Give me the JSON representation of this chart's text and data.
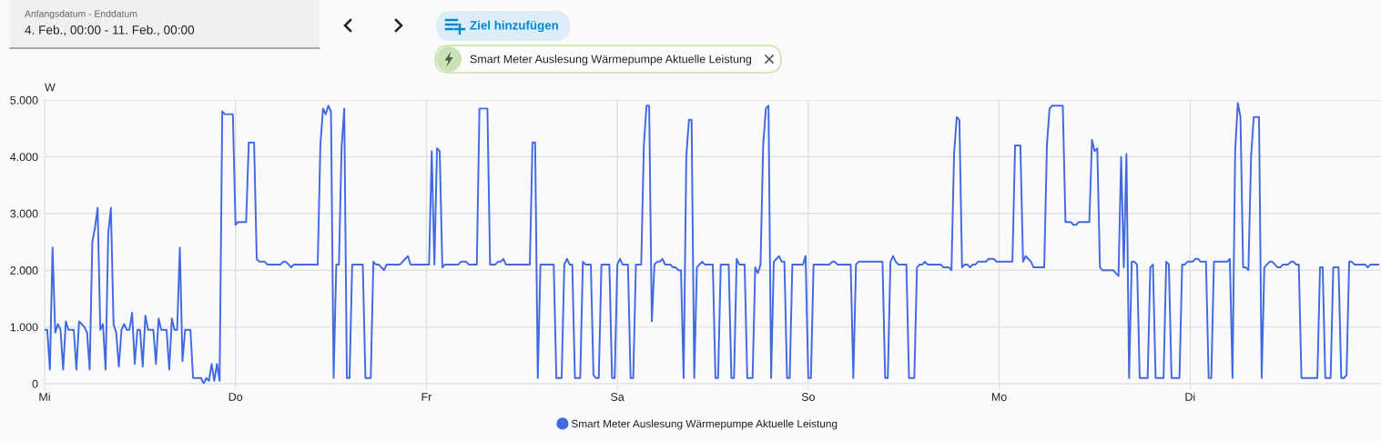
{
  "chart_data": {
    "type": "line",
    "annotations": [
      "Anfangsdatum - Enddatum",
      "4. Feb., 00:00 - 11. Feb., 00:00",
      "Ziel hinzufügen",
      "Smart Meter Auslesung Wärmepumpe Aktuelle Leistung"
    ],
    "ylabel": "W",
    "categories": [
      "Mi",
      null,
      null,
      null,
      null,
      null,
      null,
      null,
      null,
      null,
      null,
      null,
      null,
      null,
      null,
      null,
      null,
      null,
      null,
      null,
      null,
      null,
      null,
      null,
      null,
      null,
      null,
      null,
      null,
      null,
      null,
      null,
      null,
      null,
      null,
      null,
      null,
      null,
      null,
      null,
      null,
      null,
      null,
      null,
      null,
      null,
      null,
      null,
      null,
      null,
      null,
      null,
      null,
      null,
      null,
      null,
      null,
      null,
      null,
      null,
      null,
      null,
      null,
      null,
      null,
      null,
      null,
      null,
      null,
      null,
      null,
      null,
      "Do",
      null,
      null,
      null,
      null,
      null,
      null,
      null,
      null,
      null,
      null,
      null,
      null,
      null,
      null,
      null,
      null,
      null,
      null,
      null,
      null,
      null,
      null,
      null,
      null,
      null,
      null,
      null,
      null,
      null,
      null,
      null,
      null,
      null,
      null,
      null,
      null,
      null,
      null,
      null,
      null,
      null,
      null,
      null,
      null,
      null,
      null,
      null,
      null,
      null,
      null,
      null,
      null,
      null,
      null,
      null,
      null,
      null,
      null,
      null,
      null,
      null,
      null,
      null,
      null,
      null,
      null,
      null,
      null,
      null,
      null,
      null,
      "Fr",
      null,
      null,
      null,
      null,
      null,
      null,
      null,
      null,
      null,
      null,
      null,
      null,
      null,
      null,
      null,
      null,
      null,
      null,
      null,
      null,
      null,
      null,
      null,
      null,
      null,
      null,
      null,
      null,
      null,
      null,
      null,
      null,
      null,
      null,
      null,
      null,
      null,
      null,
      null,
      null,
      null,
      null,
      null,
      null,
      null,
      null,
      null,
      null,
      null,
      null,
      null,
      null,
      null,
      null,
      null,
      null,
      null,
      null,
      null,
      null,
      null,
      null,
      null,
      null,
      null,
      null,
      null,
      null,
      null,
      null,
      null,
      "Sa",
      null,
      null,
      null,
      null,
      null,
      null,
      null,
      null,
      null,
      null,
      null,
      null,
      null,
      null,
      null,
      null,
      null,
      null,
      null,
      null,
      null,
      null,
      null,
      null,
      null,
      null,
      null,
      null,
      null,
      null,
      null,
      null,
      null,
      null,
      null,
      null,
      null,
      null,
      null,
      null,
      null,
      null,
      null,
      null,
      null,
      null,
      null,
      null,
      null,
      null,
      null,
      null,
      null,
      null,
      null,
      null,
      null,
      null,
      null,
      null,
      null,
      null,
      null,
      null,
      null,
      null,
      null,
      null,
      null,
      null,
      null,
      "So",
      null,
      null,
      null,
      null,
      null,
      null,
      null,
      null,
      null,
      null,
      null,
      null,
      null,
      null,
      null,
      null,
      null,
      null,
      null,
      null,
      null,
      null,
      null,
      null,
      null,
      null,
      null,
      null,
      null,
      null,
      null,
      null,
      null,
      null,
      null,
      null,
      null,
      null,
      null,
      null,
      null,
      null,
      null,
      null,
      null,
      null,
      null,
      null,
      null,
      null,
      null,
      null,
      null,
      null,
      null,
      null,
      null,
      null,
      null,
      null,
      null,
      null,
      null,
      null,
      null,
      null,
      null,
      null,
      null,
      null,
      null,
      "Mo",
      null,
      null,
      null,
      null,
      null,
      null,
      null,
      null,
      null,
      null,
      null,
      null,
      null,
      null,
      null,
      null,
      null,
      null,
      null,
      null,
      null,
      null,
      null,
      null,
      null,
      null,
      null,
      null,
      null,
      null,
      null,
      null,
      null,
      null,
      null,
      null,
      null,
      null,
      null,
      null,
      null,
      null,
      null,
      null,
      null,
      null,
      null,
      null,
      null,
      null,
      null,
      null,
      null,
      null,
      null,
      null,
      null,
      null,
      null,
      null,
      null,
      null,
      null,
      null,
      null,
      null,
      null,
      null,
      null,
      null,
      null,
      "Di",
      null,
      null,
      null,
      null,
      null,
      null,
      null,
      null,
      null,
      null,
      null,
      null,
      null,
      null,
      null,
      null,
      null,
      null,
      null,
      null,
      null,
      null,
      null,
      null,
      null,
      null,
      null,
      null,
      null,
      null,
      null,
      null,
      null,
      null,
      null,
      null,
      null,
      null,
      null,
      null,
      null,
      null,
      null,
      null,
      null,
      null,
      null,
      null,
      null,
      null,
      null,
      null,
      null,
      null,
      null,
      null,
      null,
      null,
      null,
      null,
      null,
      null,
      null,
      null,
      null,
      null,
      null,
      null,
      null,
      null,
      null
    ],
    "ylim": [
      0,
      5000
    ],
    "yticks": [
      0,
      {
        "value": 1000,
        "label": "1.000"
      },
      {
        "value": 2000,
        "label": "2.000"
      },
      {
        "value": 3000,
        "label": "3.000"
      },
      {
        "value": 4000,
        "label": "4.000"
      },
      {
        "value": 5000,
        "label": "5.000"
      }
    ],
    "grid": true,
    "legend": "bottom",
    "series": [
      {
        "name": "Smart Meter Auslesung Wärmepumpe Aktuelle Leistung",
        "color": "#4169e1",
        "values": [
          950,
          950,
          250,
          2400,
          900,
          1050,
          950,
          250,
          1100,
          950,
          950,
          950,
          250,
          1100,
          1050,
          1000,
          900,
          250,
          2500,
          2750,
          3100,
          950,
          1050,
          250,
          2650,
          3100,
          1050,
          900,
          300,
          950,
          1050,
          950,
          950,
          1250,
          350,
          950,
          950,
          300,
          1200,
          950,
          950,
          950,
          350,
          1150,
          950,
          950,
          950,
          250,
          1150,
          950,
          950,
          2400,
          400,
          950,
          950,
          950,
          100,
          100,
          100,
          100,
          0,
          100,
          50,
          350,
          50,
          350,
          50,
          4800,
          4750,
          4750,
          4750,
          4750,
          2800,
          2850,
          2850,
          2850,
          2850,
          4250,
          4250,
          4250,
          2200,
          2150,
          2150,
          2150,
          2100,
          2100,
          2100,
          2100,
          2100,
          2100,
          2150,
          2150,
          2100,
          2050,
          2100,
          2100,
          2100,
          2100,
          2100,
          2100,
          2100,
          2100,
          2100,
          2100,
          4200,
          4850,
          4750,
          4900,
          4800,
          100,
          2100,
          2100,
          4150,
          4850,
          100,
          100,
          2100,
          2100,
          2100,
          2100,
          2100,
          100,
          100,
          100,
          2150,
          2100,
          2100,
          2050,
          2000,
          2100,
          2100,
          2100,
          2100,
          2100,
          2100,
          2150,
          2200,
          2250,
          2100,
          2100,
          2100,
          2100,
          2100,
          2100,
          2100,
          2100,
          4100,
          2100,
          4150,
          4100,
          2050,
          2100,
          2100,
          2100,
          2100,
          2100,
          2100,
          2150,
          2150,
          2150,
          2100,
          2100,
          2100,
          2100,
          4850,
          4850,
          4850,
          4850,
          2100,
          2100,
          2100,
          2150,
          2150,
          2200,
          2100,
          2100,
          2100,
          2100,
          2100,
          2100,
          2100,
          2100,
          2100,
          2100,
          4250,
          4250,
          100,
          2100,
          2100,
          2100,
          2100,
          2100,
          2100,
          100,
          100,
          100,
          2100,
          2200,
          2100,
          2100,
          100,
          100,
          100,
          2150,
          2100,
          2100,
          2100,
          150,
          100,
          100,
          2100,
          2100,
          2100,
          2100,
          100,
          100,
          2100,
          2200,
          2100,
          2100,
          2100,
          100,
          100,
          2100,
          2100,
          2100,
          4200,
          4900,
          4900,
          1100,
          2100,
          2150,
          2150,
          2200,
          2100,
          2100,
          2100,
          2050,
          2050,
          2000,
          2000,
          100,
          4000,
          4650,
          4650,
          100,
          2050,
          2100,
          2150,
          2100,
          2100,
          2100,
          2100,
          100,
          100,
          2100,
          2100,
          2100,
          2100,
          100,
          100,
          2200,
          2100,
          2100,
          2100,
          100,
          100,
          100,
          2050,
          1950,
          2100,
          4200,
          4850,
          4900,
          100,
          2150,
          2200,
          2250,
          2150,
          2150,
          100,
          100,
          2100,
          2100,
          2100,
          2100,
          2100,
          2250,
          100,
          100,
          2100,
          2100,
          2100,
          2100,
          2100,
          2100,
          2100,
          2150,
          2150,
          2100,
          2100,
          2100,
          2100,
          2100,
          2100,
          100,
          2100,
          2150,
          2150,
          2150,
          2150,
          2150,
          2150,
          2150,
          2150,
          2150,
          2150,
          100,
          100,
          2150,
          2250,
          2150,
          2100,
          2100,
          2100,
          2100,
          100,
          100,
          100,
          2050,
          2100,
          2100,
          2150,
          2100,
          2100,
          2100,
          2100,
          2100,
          2100,
          2050,
          2050,
          2050,
          2000,
          4050,
          4700,
          4650,
          2050,
          2100,
          2100,
          2050,
          2100,
          2100,
          2150,
          2150,
          2150,
          2150,
          2200,
          2200,
          2200,
          2150,
          2150,
          2150,
          2150,
          2150,
          2150,
          2150,
          4200,
          4200,
          4200,
          2150,
          2250,
          2200,
          2150,
          2050,
          2050,
          2050,
          2050,
          2050,
          4200,
          4850,
          4900,
          4900,
          4900,
          4900,
          4900,
          2850,
          2850,
          2850,
          2800,
          2800,
          2850,
          2850,
          2850,
          2850,
          2850,
          4300,
          4100,
          4150,
          2050,
          2000,
          2000,
          2000,
          2000,
          2000,
          1950,
          1900,
          4000,
          2050,
          4050,
          100,
          2150,
          2150,
          2100,
          100,
          100,
          100,
          100,
          2050,
          2100,
          100,
          100,
          100,
          100,
          2150,
          2100,
          100,
          100,
          100,
          100,
          2100,
          2100,
          2150,
          2150,
          2150,
          2200,
          2200,
          2150,
          2150,
          2150,
          100,
          100,
          2150,
          2150,
          2150,
          2150,
          2150,
          2150,
          2200,
          100,
          4100,
          4950,
          4700,
          2050,
          2050,
          2000,
          4000,
          4700,
          4700,
          4700,
          100,
          2050,
          2100,
          2150,
          2150,
          2100,
          2050,
          2050,
          2100,
          2100,
          2100,
          2150,
          2150,
          2100,
          2100,
          100,
          100,
          100,
          100,
          100,
          100,
          100,
          2050,
          2050,
          100,
          100,
          100,
          2050,
          2050,
          2050,
          100,
          100,
          150,
          2150,
          2150,
          2100,
          2100,
          2100,
          2100,
          2100,
          2050,
          2100,
          2100,
          2100,
          2100
        ]
      }
    ]
  }
}
